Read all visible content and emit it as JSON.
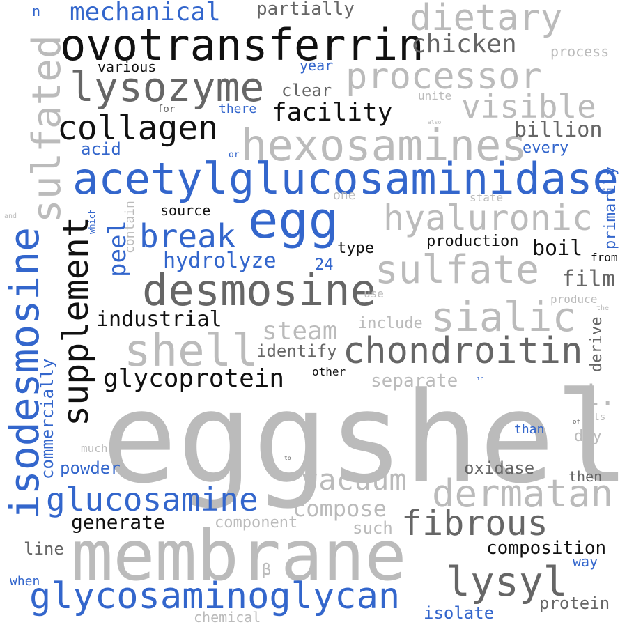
{
  "colors": {
    "black": "#111111",
    "dark_gray": "#666666",
    "gray": "#bbbbbb",
    "blue": "#3366cc"
  },
  "words": [
    {
      "id": "eggshell",
      "text": "eggshell",
      "color": "#bbbbbb",
      "size": 180
    },
    {
      "id": "membrane",
      "text": "membrane",
      "color": "#bbbbbb",
      "size": 100
    },
    {
      "id": "acetylglucosaminidase",
      "text": "acetylglucosaminidase",
      "color": "#3366cc",
      "size": 62
    },
    {
      "id": "ovotransferrin",
      "text": "ovotransferrin",
      "color": "#111111",
      "size": 62
    },
    {
      "id": "hexosamines",
      "text": "hexosamines",
      "color": "#bbbbbb",
      "size": 62
    },
    {
      "id": "egg",
      "text": "egg",
      "color": "#3366cc",
      "size": 72
    },
    {
      "id": "desmosine",
      "text": "desmosine",
      "color": "#666666",
      "size": 62
    },
    {
      "id": "glycosaminoglycan",
      "text": "glycosaminoglycan",
      "color": "#3366cc",
      "size": 52
    },
    {
      "id": "isodesmosine",
      "text": "isodesmosine",
      "color": "#3366cc",
      "size": 58
    },
    {
      "id": "sulfated",
      "text": "sulfated",
      "color": "#bbbbbb",
      "size": 56
    },
    {
      "id": "supplement",
      "text": "supplement",
      "color": "#111111",
      "size": 50
    },
    {
      "id": "lysozyme",
      "text": "lysozyme",
      "color": "#666666",
      "size": 58
    },
    {
      "id": "processor",
      "text": "processor",
      "color": "#bbbbbb",
      "size": 52
    },
    {
      "id": "dietary",
      "text": "dietary",
      "color": "#bbbbbb",
      "size": 52
    },
    {
      "id": "collagen",
      "text": "collagen",
      "color": "#111111",
      "size": 48
    },
    {
      "id": "hyaluronic",
      "text": "hyaluronic",
      "color": "#bbbbbb",
      "size": 50
    },
    {
      "id": "sulfate",
      "text": "sulfate",
      "color": "#bbbbbb",
      "size": 56
    },
    {
      "id": "sialic",
      "text": "sialic",
      "color": "#bbbbbb",
      "size": 58
    },
    {
      "id": "shell",
      "text": "shell",
      "color": "#bbbbbb",
      "size": 64
    },
    {
      "id": "chondroitin",
      "text": "chondroitin",
      "color": "#666666",
      "size": 52
    },
    {
      "id": "dermatan",
      "text": "dermatan",
      "color": "#bbbbbb",
      "size": 54
    },
    {
      "id": "fibrous",
      "text": "fibrous",
      "color": "#666666",
      "size": 50
    },
    {
      "id": "lysyl",
      "text": "lysyl",
      "color": "#666666",
      "size": 58
    },
    {
      "id": "glucosamine",
      "text": "glucosamine",
      "color": "#3366cc",
      "size": 46
    },
    {
      "id": "vacuum",
      "text": "vacuum",
      "color": "#bbbbbb",
      "size": 42
    },
    {
      "id": "visible",
      "text": "visible",
      "color": "#bbbbbb",
      "size": 46
    },
    {
      "id": "break",
      "text": "break",
      "color": "#3366cc",
      "size": 46
    },
    {
      "id": "glycoprotein",
      "text": "glycoprotein",
      "color": "#111111",
      "size": 36
    },
    {
      "id": "facility",
      "text": "facility",
      "color": "#111111",
      "size": 36
    },
    {
      "id": "chicken",
      "text": "chicken",
      "color": "#666666",
      "size": 36
    },
    {
      "id": "mechanical",
      "text": "mechanical",
      "color": "#3366cc",
      "size": 36
    },
    {
      "id": "steam",
      "text": "steam",
      "color": "#bbbbbb",
      "size": 36
    },
    {
      "id": "compose",
      "text": "compose",
      "color": "#bbbbbb",
      "size": 32
    },
    {
      "id": "hydrolyze",
      "text": "hydrolyze",
      "color": "#3366cc",
      "size": 30
    },
    {
      "id": "industrial",
      "text": "industrial",
      "color": "#111111",
      "size": 30
    },
    {
      "id": "billion",
      "text": "billion",
      "color": "#666666",
      "size": 30
    },
    {
      "id": "film",
      "text": "film",
      "color": "#666666",
      "size": 32
    },
    {
      "id": "peel",
      "text": "peel",
      "color": "#3366cc",
      "size": 34
    },
    {
      "id": "boil",
      "text": "boil",
      "color": "#111111",
      "size": 30
    },
    {
      "id": "generate",
      "text": "generate",
      "color": "#111111",
      "size": 28
    },
    {
      "id": "composition",
      "text": "composition",
      "color": "#111111",
      "size": 26
    },
    {
      "id": "separate",
      "text": "separate",
      "color": "#bbbbbb",
      "size": 26
    },
    {
      "id": "identify",
      "text": "identify",
      "color": "#666666",
      "size": 24
    },
    {
      "id": "partially",
      "text": "partially",
      "color": "#666666",
      "size": 26
    },
    {
      "id": "clear",
      "text": "clear",
      "color": "#666666",
      "size": 24
    },
    {
      "id": "oxidase",
      "text": "oxidase",
      "color": "#666666",
      "size": 24
    },
    {
      "id": "protein",
      "text": "protein",
      "color": "#666666",
      "size": 24
    },
    {
      "id": "isolate",
      "text": "isolate",
      "color": "#3366cc",
      "size": 24
    },
    {
      "id": "powder",
      "text": "powder",
      "color": "#3366cc",
      "size": 24
    },
    {
      "id": "commercially",
      "text": "commercially",
      "color": "#3366cc",
      "size": 24
    },
    {
      "id": "derive",
      "text": "derive",
      "color": "#666666",
      "size": 22
    },
    {
      "id": "primarily",
      "text": "primarily",
      "color": "#3366cc",
      "size": 22
    },
    {
      "id": "component",
      "text": "component",
      "color": "#bbbbbb",
      "size": 22
    },
    {
      "id": "production",
      "text": "production",
      "color": "#111111",
      "size": 22
    },
    {
      "id": "i",
      "text": "i.",
      "color": "#bbbbbb",
      "size": 40
    },
    {
      "id": "chemical",
      "text": "chemical",
      "color": "#bbbbbb",
      "size": 20
    },
    {
      "id": "line",
      "text": "line",
      "color": "#666666",
      "size": 24
    },
    {
      "id": "such",
      "text": "such",
      "color": "#bbbbbb",
      "size": 24
    },
    {
      "id": "include",
      "text": "include",
      "color": "#bbbbbb",
      "size": 22
    },
    {
      "id": "dry",
      "text": "dry",
      "color": "#bbbbbb",
      "size": 22
    },
    {
      "id": "then",
      "text": "then",
      "color": "#666666",
      "size": 20
    },
    {
      "id": "way",
      "text": "way",
      "color": "#3366cc",
      "size": 20
    },
    {
      "id": "type",
      "text": "type",
      "color": "#111111",
      "size": 22
    },
    {
      "id": "source",
      "text": "source",
      "color": "#111111",
      "size": 20
    },
    {
      "id": "various",
      "text": "various",
      "color": "#111111",
      "size": 20
    },
    {
      "id": "acid",
      "text": "acid",
      "color": "#3366cc",
      "size": 24
    },
    {
      "id": "every",
      "text": "every",
      "color": "#3366cc",
      "size": 22
    },
    {
      "id": "process",
      "text": "process",
      "color": "#bbbbbb",
      "size": 20
    },
    {
      "id": "year",
      "text": "year",
      "color": "#3366cc",
      "size": 20
    },
    {
      "id": "24",
      "text": "24",
      "color": "#3366cc",
      "size": 22
    },
    {
      "id": "contain",
      "text": "contain",
      "color": "#bbbbbb",
      "size": 18
    },
    {
      "id": "there",
      "text": "there",
      "color": "#3366cc",
      "size": 18
    },
    {
      "id": "from",
      "text": "from",
      "color": "#111111",
      "size": 16
    },
    {
      "id": "beta",
      "text": "β",
      "color": "#bbbbbb",
      "size": 22
    },
    {
      "id": "one",
      "text": "one",
      "color": "#bbbbbb",
      "size": 18
    },
    {
      "id": "state",
      "text": "state",
      "color": "#bbbbbb",
      "size": 16
    },
    {
      "id": "unite",
      "text": "unite",
      "color": "#bbbbbb",
      "size": 16
    },
    {
      "id": "produce",
      "text": "produce",
      "color": "#bbbbbb",
      "size": 16
    },
    {
      "id": "use",
      "text": "use",
      "color": "#bbbbbb",
      "size": 16
    },
    {
      "id": "when",
      "text": "when",
      "color": "#3366cc",
      "size": 18
    },
    {
      "id": "than",
      "text": "than",
      "color": "#3366cc",
      "size": 18
    },
    {
      "id": "much",
      "text": "much",
      "color": "#bbbbbb",
      "size": 16
    },
    {
      "id": "other",
      "text": "other",
      "color": "#111111",
      "size": 16
    },
    {
      "id": "its",
      "text": "its",
      "color": "#bbbbbb",
      "size": 14
    },
    {
      "id": "n",
      "text": "n",
      "color": "#3366cc",
      "size": 20
    },
    {
      "id": "for",
      "text": "for",
      "color": "#666666",
      "size": 14
    },
    {
      "id": "or",
      "text": "or",
      "color": "#3366cc",
      "size": 13
    },
    {
      "id": "which",
      "text": "which",
      "color": "#3366cc",
      "size": 12
    },
    {
      "id": "and",
      "text": "and",
      "color": "#bbbbbb",
      "size": 10
    },
    {
      "id": "the",
      "text": "the",
      "color": "#bbbbbb",
      "size": 10
    },
    {
      "id": "in",
      "text": "in",
      "color": "#3366cc",
      "size": 9
    },
    {
      "id": "of",
      "text": "of",
      "color": "#666666",
      "size": 9
    },
    {
      "id": "to",
      "text": "to",
      "color": "#666666",
      "size": 8
    },
    {
      "id": "also",
      "text": "also",
      "color": "#bbbbbb",
      "size": 8
    },
    {
      "id": "dot",
      "text": "·",
      "color": "#bbbbbb",
      "size": 10
    }
  ]
}
